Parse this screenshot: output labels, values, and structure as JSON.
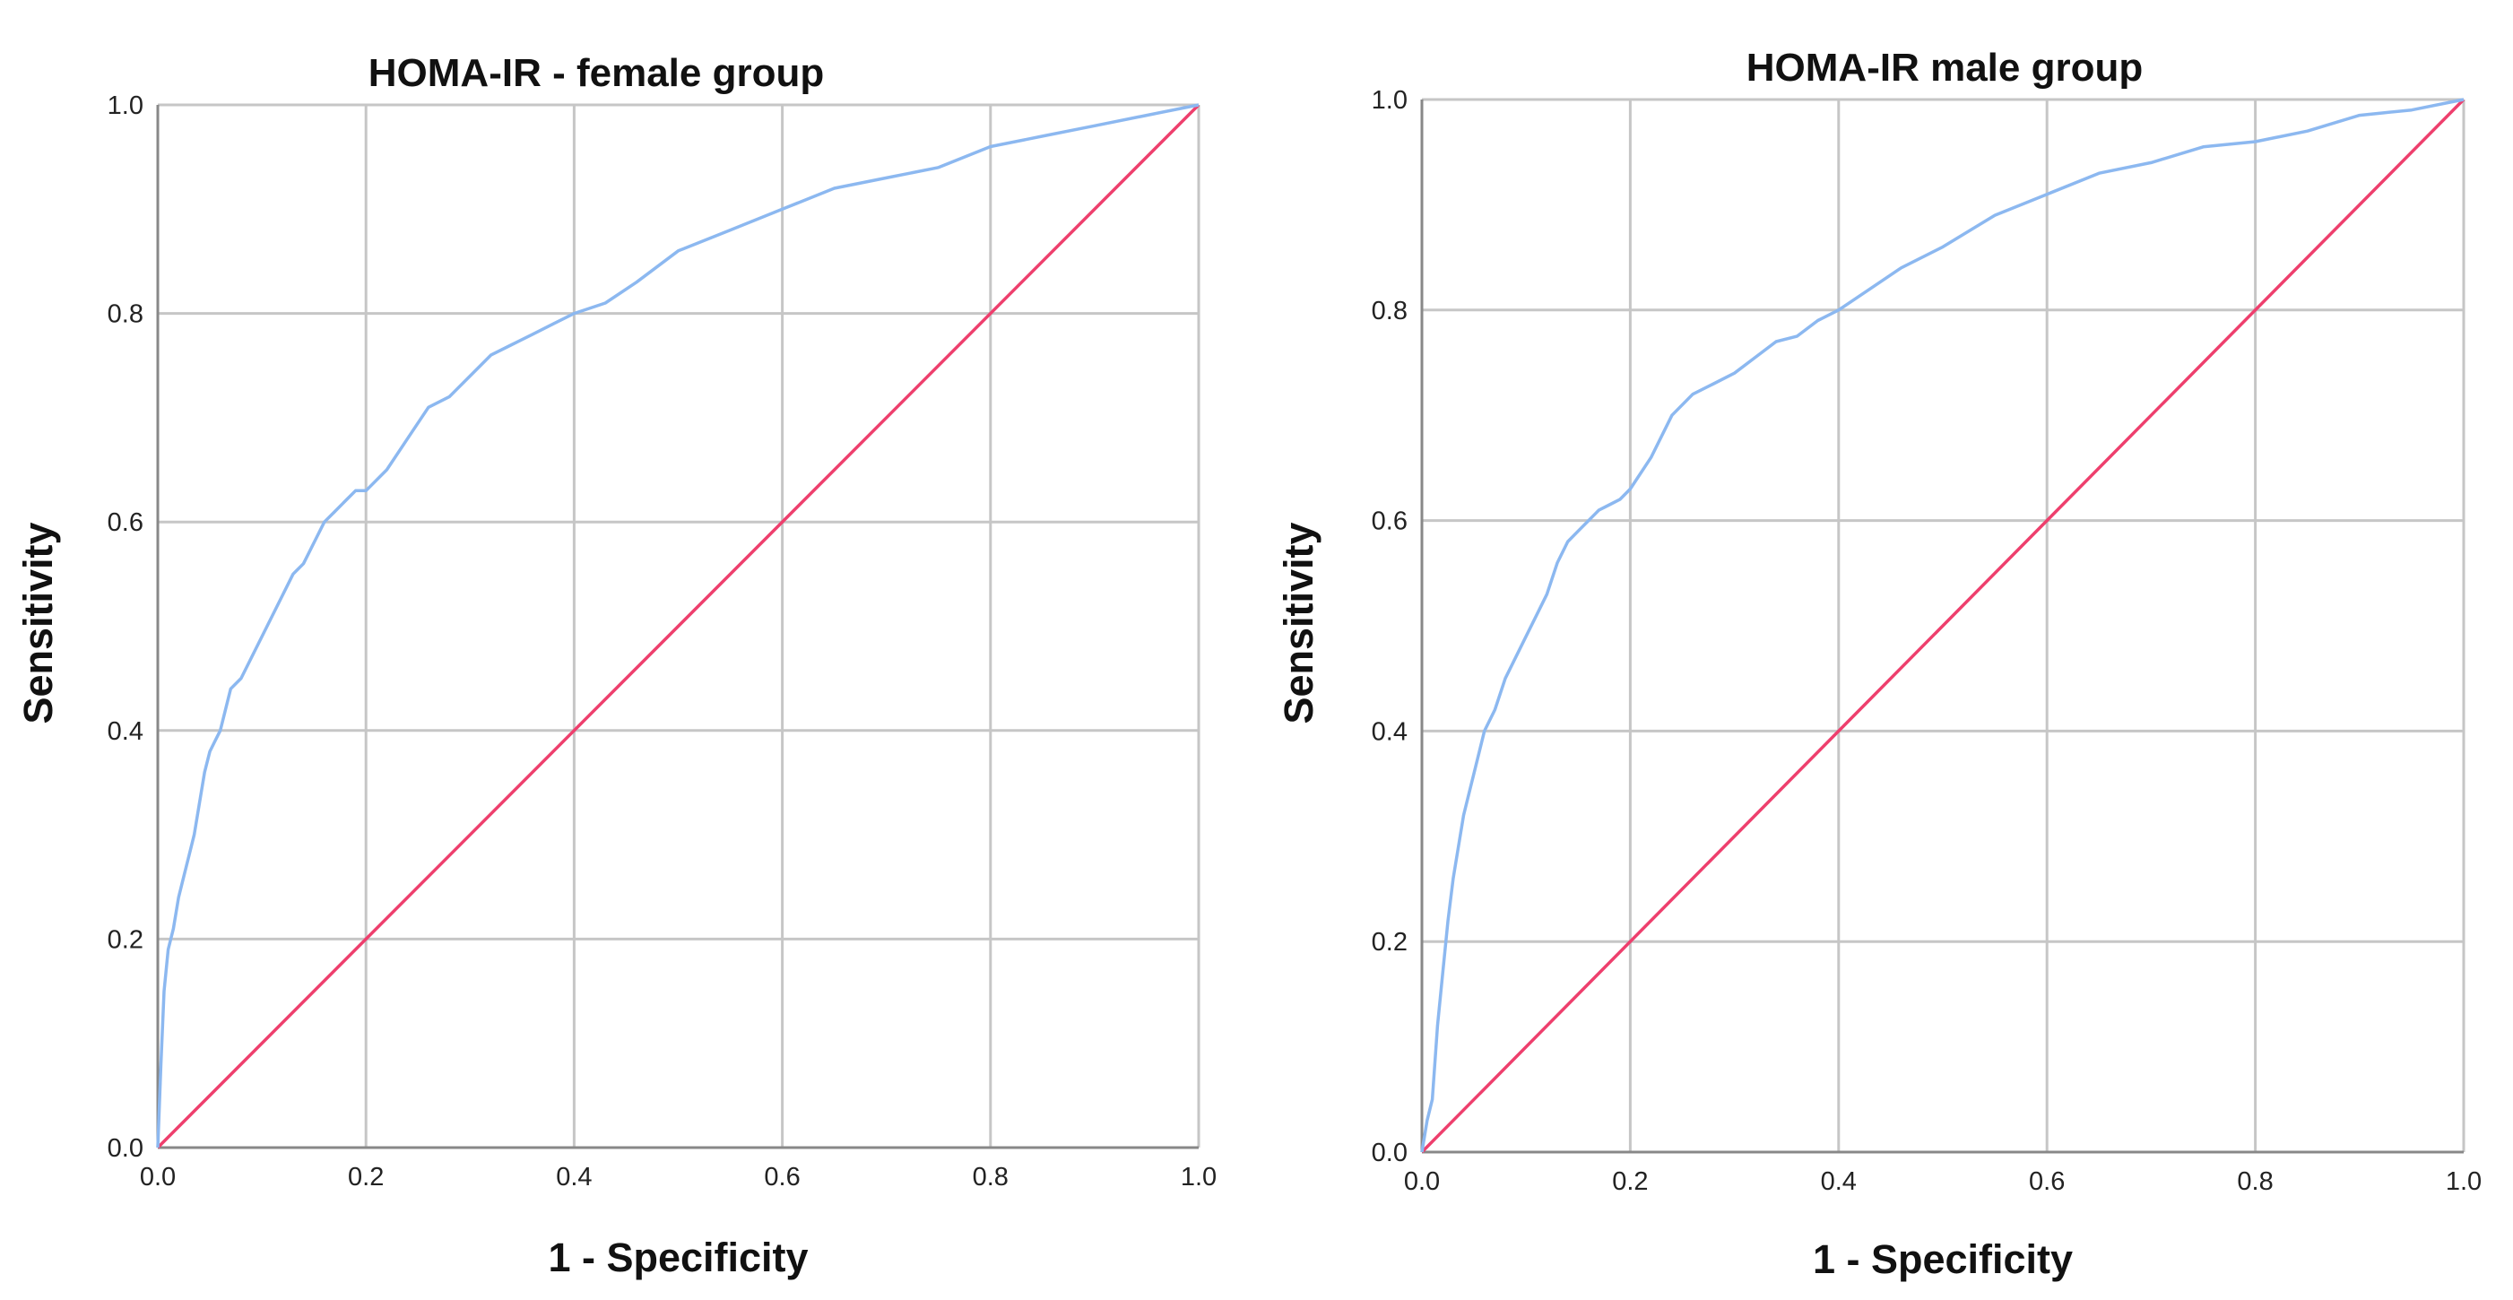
{
  "chart_data": [
    {
      "type": "line",
      "title": "HOMA-IR - female group",
      "xlabel": "1 - Specificity",
      "ylabel": "Sensitivity",
      "xlim": [
        0,
        1
      ],
      "ylim": [
        0,
        1
      ],
      "x_ticks": [
        "0.0",
        "0.2",
        "0.4",
        "0.6",
        "0.8",
        "1.0"
      ],
      "y_ticks": [
        "0.0",
        "0.2",
        "0.4",
        "0.6",
        "0.8",
        "1.0"
      ],
      "grid": true,
      "colors": {
        "roc": "#8cb8f0",
        "reference": "#ee3f6d"
      },
      "series": [
        {
          "x": [
            0,
            0.003,
            0.006,
            0.01,
            0.015,
            0.02,
            0.025,
            0.03,
            0.035,
            0.04,
            0.045,
            0.05,
            0.055,
            0.06,
            0.07,
            0.08,
            0.09,
            0.1,
            0.11,
            0.12,
            0.13,
            0.14,
            0.15,
            0.16,
            0.17,
            0.18,
            0.19,
            0.2,
            0.22,
            0.24,
            0.26,
            0.28,
            0.3,
            0.32,
            0.34,
            0.36,
            0.38,
            0.4,
            0.43,
            0.46,
            0.5,
            0.55,
            0.6,
            0.65,
            0.7,
            0.75,
            0.8,
            0.85,
            0.9,
            0.95,
            1.0
          ],
          "y": [
            0,
            0.08,
            0.15,
            0.19,
            0.21,
            0.24,
            0.26,
            0.28,
            0.3,
            0.33,
            0.36,
            0.38,
            0.39,
            0.4,
            0.44,
            0.45,
            0.47,
            0.49,
            0.51,
            0.53,
            0.55,
            0.56,
            0.58,
            0.6,
            0.61,
            0.62,
            0.63,
            0.63,
            0.65,
            0.68,
            0.71,
            0.72,
            0.74,
            0.76,
            0.77,
            0.78,
            0.79,
            0.8,
            0.81,
            0.83,
            0.86,
            0.88,
            0.9,
            0.92,
            0.93,
            0.94,
            0.96,
            0.97,
            0.98,
            0.99,
            1.0
          ]
        },
        {
          "x": [
            0,
            1
          ],
          "y": [
            0,
            1
          ]
        }
      ]
    },
    {
      "type": "line",
      "title": "HOMA-IR male group",
      "xlabel": "1 - Specificity",
      "ylabel": "Sensitivity",
      "xlim": [
        0,
        1
      ],
      "ylim": [
        0,
        1
      ],
      "x_ticks": [
        "0.0",
        "0.2",
        "0.4",
        "0.6",
        "0.8",
        "1.0"
      ],
      "y_ticks": [
        "0.0",
        "0.2",
        "0.4",
        "0.6",
        "0.8",
        "1.0"
      ],
      "grid": true,
      "colors": {
        "roc": "#8cb8f0",
        "reference": "#ee3f6d"
      },
      "series": [
        {
          "x": [
            0,
            0.005,
            0.01,
            0.015,
            0.02,
            0.025,
            0.03,
            0.035,
            0.04,
            0.045,
            0.05,
            0.055,
            0.06,
            0.07,
            0.08,
            0.09,
            0.1,
            0.11,
            0.12,
            0.13,
            0.14,
            0.15,
            0.16,
            0.17,
            0.18,
            0.19,
            0.2,
            0.22,
            0.24,
            0.26,
            0.28,
            0.3,
            0.32,
            0.34,
            0.36,
            0.38,
            0.4,
            0.43,
            0.46,
            0.5,
            0.55,
            0.6,
            0.65,
            0.7,
            0.75,
            0.8,
            0.85,
            0.9,
            0.95,
            1.0
          ],
          "y": [
            0,
            0.03,
            0.05,
            0.12,
            0.17,
            0.22,
            0.26,
            0.29,
            0.32,
            0.34,
            0.36,
            0.38,
            0.4,
            0.42,
            0.45,
            0.47,
            0.49,
            0.51,
            0.53,
            0.56,
            0.58,
            0.59,
            0.6,
            0.61,
            0.615,
            0.62,
            0.63,
            0.66,
            0.7,
            0.72,
            0.73,
            0.74,
            0.755,
            0.77,
            0.775,
            0.79,
            0.8,
            0.82,
            0.84,
            0.86,
            0.89,
            0.91,
            0.93,
            0.94,
            0.955,
            0.96,
            0.97,
            0.985,
            0.99,
            1.0
          ]
        },
        {
          "x": [
            0,
            1
          ],
          "y": [
            0,
            1
          ]
        }
      ]
    }
  ]
}
